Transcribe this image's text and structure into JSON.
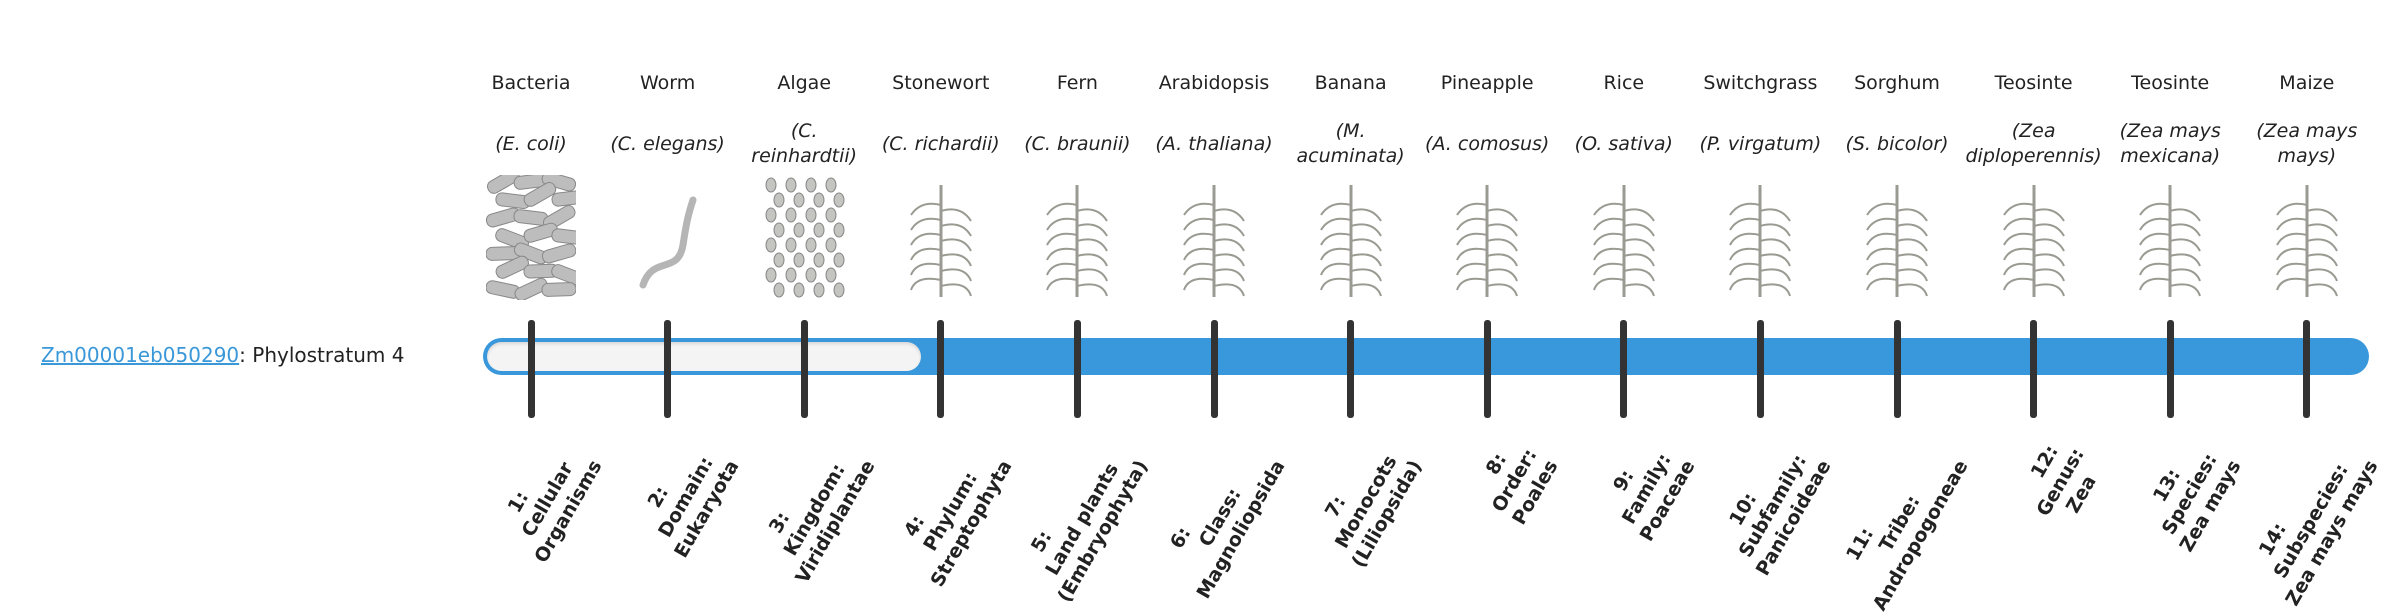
{
  "gene": {
    "id_link": "Zm00001eb050290",
    "suffix": ": Phylostratum 4"
  },
  "progress": {
    "current_stratum": 4,
    "total_strata": 14
  },
  "colors": {
    "accent": "#3898db",
    "tick": "#333333",
    "empty": "#f4f4f4"
  },
  "organisms": [
    {
      "name": "Bacteria",
      "species": "(E. coli)",
      "icon": "bacteria-illustration"
    },
    {
      "name": "Worm",
      "species": "(C. elegans)",
      "icon": "worm-illustration"
    },
    {
      "name": "Algae",
      "species": "(C. reinhardtii)",
      "icon": "algae-illustration"
    },
    {
      "name": "Stonewort",
      "species": "(C. richardii)",
      "icon": "stonewort-illustration"
    },
    {
      "name": "Fern",
      "species": "(C. braunii)",
      "icon": "fern-illustration"
    },
    {
      "name": "Arabidopsis",
      "species": "(A. thaliana)",
      "icon": "arabidopsis-illustration"
    },
    {
      "name": "Banana",
      "species": "(M. acuminata)",
      "icon": "banana-illustration"
    },
    {
      "name": "Pineapple",
      "species": "(A. comosus)",
      "icon": "pineapple-illustration"
    },
    {
      "name": "Rice",
      "species": "(O. sativa)",
      "icon": "rice-illustration"
    },
    {
      "name": "Switchgrass",
      "species": "(P. virgatum)",
      "icon": "switchgrass-illustration"
    },
    {
      "name": "Sorghum",
      "species": "(S. bicolor)",
      "icon": "sorghum-illustration"
    },
    {
      "name": "Teosinte",
      "species": "(Zea diploperennis)",
      "icon": "teosinte-illustration"
    },
    {
      "name": "Teosinte",
      "species": "(Zea mays mexicana)",
      "icon": "teosinte-illustration"
    },
    {
      "name": "Maize",
      "species": "(Zea mays mays)",
      "icon": "maize-illustration"
    }
  ],
  "strata": [
    {
      "l1": "1:",
      "l2": "Cellular",
      "l3": "Organisms"
    },
    {
      "l1": "2:",
      "l2": "Domain:",
      "l3": "Eukaryota"
    },
    {
      "l1": "3:",
      "l2": "Kingdom:",
      "l3": "Viridiplantae"
    },
    {
      "l1": "4:",
      "l2": "Phylum:",
      "l3": "Streptophyta"
    },
    {
      "l1": "5:",
      "l2": "Land plants",
      "l3": "(Embryophyta)"
    },
    {
      "l1": "6:",
      "l2": "Class:",
      "l3": "Magnoliopsida"
    },
    {
      "l1": "7:",
      "l2": "Monocots",
      "l3": "(Liliopsida)"
    },
    {
      "l1": "8:",
      "l2": "Order:",
      "l3": "Poales"
    },
    {
      "l1": "9:",
      "l2": "Family:",
      "l3": "Poaceae"
    },
    {
      "l1": "10:",
      "l2": "Subfamily:",
      "l3": "Panicoideae"
    },
    {
      "l1": "11:",
      "l2": "Tribe:",
      "l3": "Andropogoneae"
    },
    {
      "l1": "12:",
      "l2": "Genus:",
      "l3": "Zea"
    },
    {
      "l1": "13:",
      "l2": "Species:",
      "l3": "Zea mays"
    },
    {
      "l1": "14:",
      "l2": "Subspecies:",
      "l3": "Zea mays mays"
    }
  ]
}
